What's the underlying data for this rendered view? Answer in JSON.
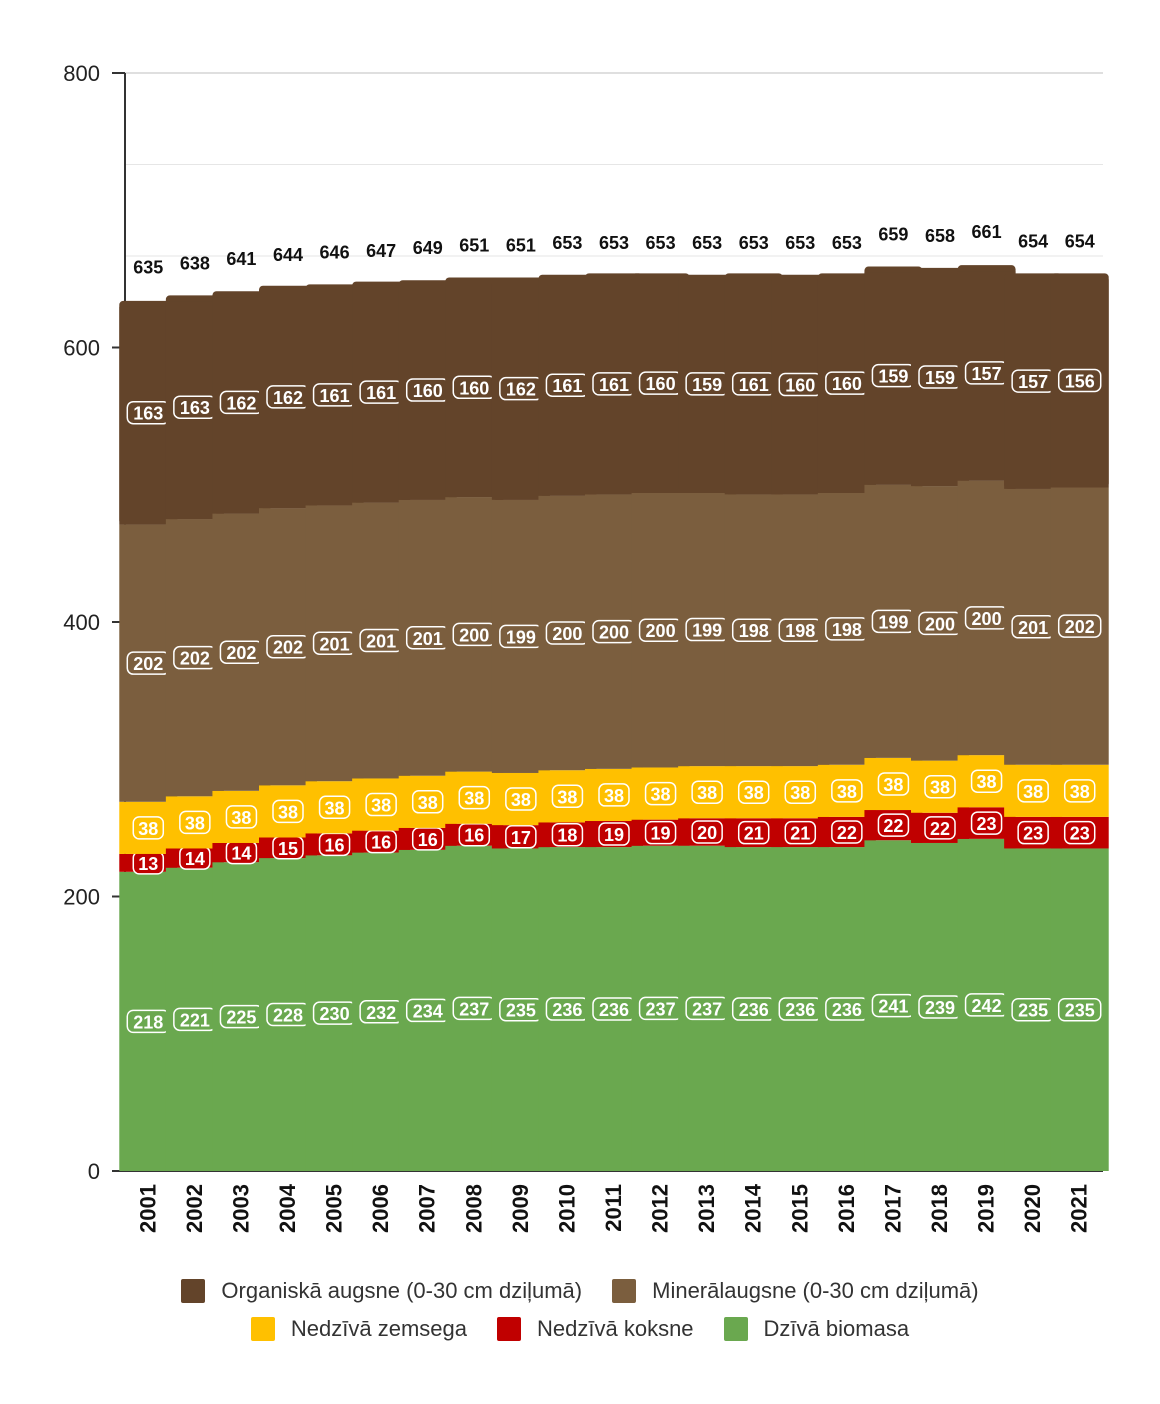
{
  "chart_data": {
    "type": "bar",
    "stacked": true,
    "categories": [
      "2001",
      "2002",
      "2003",
      "2004",
      "2005",
      "2006",
      "2007",
      "2008",
      "2009",
      "2010",
      "2011",
      "2012",
      "2013",
      "2014",
      "2015",
      "2016",
      "2017",
      "2018",
      "2019",
      "2020",
      "2021"
    ],
    "series": [
      {
        "name": "Dzīvā biomasa",
        "color": "#6aa84f",
        "values": [
          218,
          221,
          225,
          228,
          230,
          232,
          234,
          237,
          235,
          236,
          236,
          237,
          237,
          236,
          236,
          236,
          241,
          239,
          242,
          235,
          235
        ]
      },
      {
        "name": "Nedzīvā koksne",
        "color": "#c00000",
        "values": [
          13,
          14,
          14,
          15,
          16,
          16,
          16,
          16,
          17,
          18,
          19,
          19,
          20,
          21,
          21,
          22,
          22,
          22,
          23,
          23,
          23
        ]
      },
      {
        "name": "Nedzīvā zemsega",
        "color": "#ffc000",
        "values": [
          38,
          38,
          38,
          38,
          38,
          38,
          38,
          38,
          38,
          38,
          38,
          38,
          38,
          38,
          38,
          38,
          38,
          38,
          38,
          38,
          38
        ]
      },
      {
        "name": "Minerālaugsne (0-30 cm dziļumā)",
        "color": "#7b5e3e",
        "values": [
          202,
          202,
          202,
          202,
          201,
          201,
          201,
          200,
          199,
          200,
          200,
          200,
          199,
          198,
          198,
          198,
          199,
          200,
          200,
          201,
          202
        ]
      },
      {
        "name": "Organiskā augsne (0-30 cm dziļumā)",
        "color": "#63442a",
        "values": [
          163,
          163,
          162,
          162,
          161,
          161,
          160,
          160,
          162,
          161,
          161,
          160,
          159,
          161,
          160,
          160,
          159,
          159,
          157,
          157,
          156
        ]
      }
    ],
    "totals": [
      635,
      638,
      641,
      644,
      646,
      647,
      649,
      651,
      651,
      653,
      653,
      653,
      653,
      653,
      653,
      653,
      659,
      658,
      661,
      654,
      654
    ],
    "y_ticks": [
      0,
      200,
      400,
      600,
      800
    ],
    "ylim": [
      0,
      800
    ],
    "grid": true,
    "legend_position": "bottom"
  },
  "legend": {
    "row1": [
      "Organiskā augsne (0-30 cm dziļumā)",
      "Minerālaugsne (0-30 cm dziļumā)"
    ],
    "row2": [
      "Nedzīvā zemsega",
      "Nedzīvā koksne",
      "Dzīvā biomasa"
    ]
  },
  "legend_colors": {
    "row1": [
      "#63442a",
      "#7b5e3e"
    ],
    "row2": [
      "#ffc000",
      "#c00000",
      "#6aa84f"
    ]
  }
}
